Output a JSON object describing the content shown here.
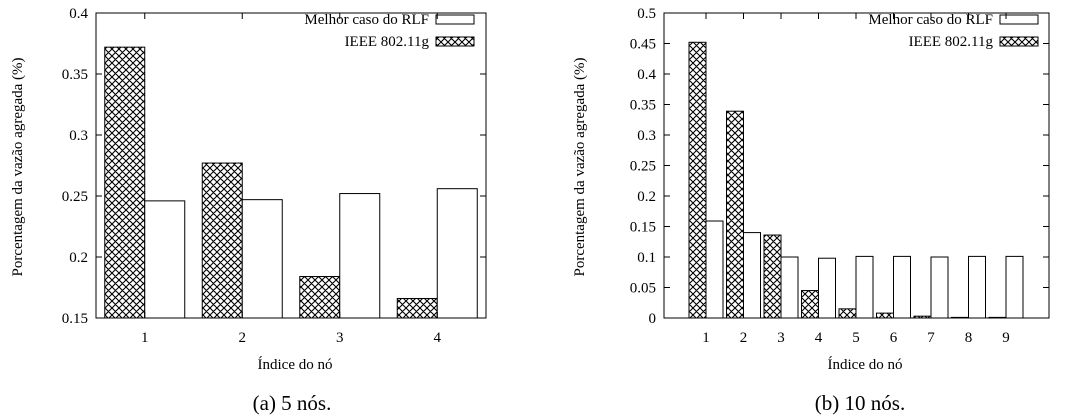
{
  "chart_data": [
    {
      "type": "bar",
      "caption": "(a) 5 nós.",
      "xlabel": "Índice do nó",
      "ylabel": "Porcentagem da vazão agregada (%)",
      "categories": [
        "1",
        "2",
        "3",
        "4"
      ],
      "ylim": [
        0.15,
        0.4
      ],
      "yticks": [
        "0.15",
        "0.2",
        "0.25",
        "0.3",
        "0.35",
        "0.4"
      ],
      "legend_position": "top-right",
      "series": [
        {
          "name": "IEEE 802.11g",
          "pattern": "crosshatch",
          "values": [
            0.372,
            0.277,
            0.184,
            0.166
          ]
        },
        {
          "name": "Melhor caso do RLF",
          "pattern": "white",
          "values": [
            0.246,
            0.247,
            0.252,
            0.256
          ]
        }
      ]
    },
    {
      "type": "bar",
      "caption": "(b) 10 nós.",
      "xlabel": "Índice do nó",
      "ylabel": "Porcentagem da vazão agregada (%)",
      "categories": [
        "1",
        "2",
        "3",
        "4",
        "5",
        "6",
        "7",
        "8",
        "9"
      ],
      "ylim": [
        0,
        0.5
      ],
      "yticks": [
        "0",
        "0.05",
        "0.1",
        "0.15",
        "0.2",
        "0.25",
        "0.3",
        "0.35",
        "0.4",
        "0.45",
        "0.5"
      ],
      "legend_position": "top-right",
      "series": [
        {
          "name": "IEEE 802.11g",
          "pattern": "crosshatch",
          "values": [
            0.452,
            0.339,
            0.136,
            0.045,
            0.015,
            0.008,
            0.003,
            0.001,
            0.001
          ]
        },
        {
          "name": "Melhor caso do RLF",
          "pattern": "white",
          "values": [
            0.159,
            0.14,
            0.1,
            0.098,
            0.101,
            0.101,
            0.1,
            0.101,
            0.101
          ]
        }
      ]
    }
  ]
}
